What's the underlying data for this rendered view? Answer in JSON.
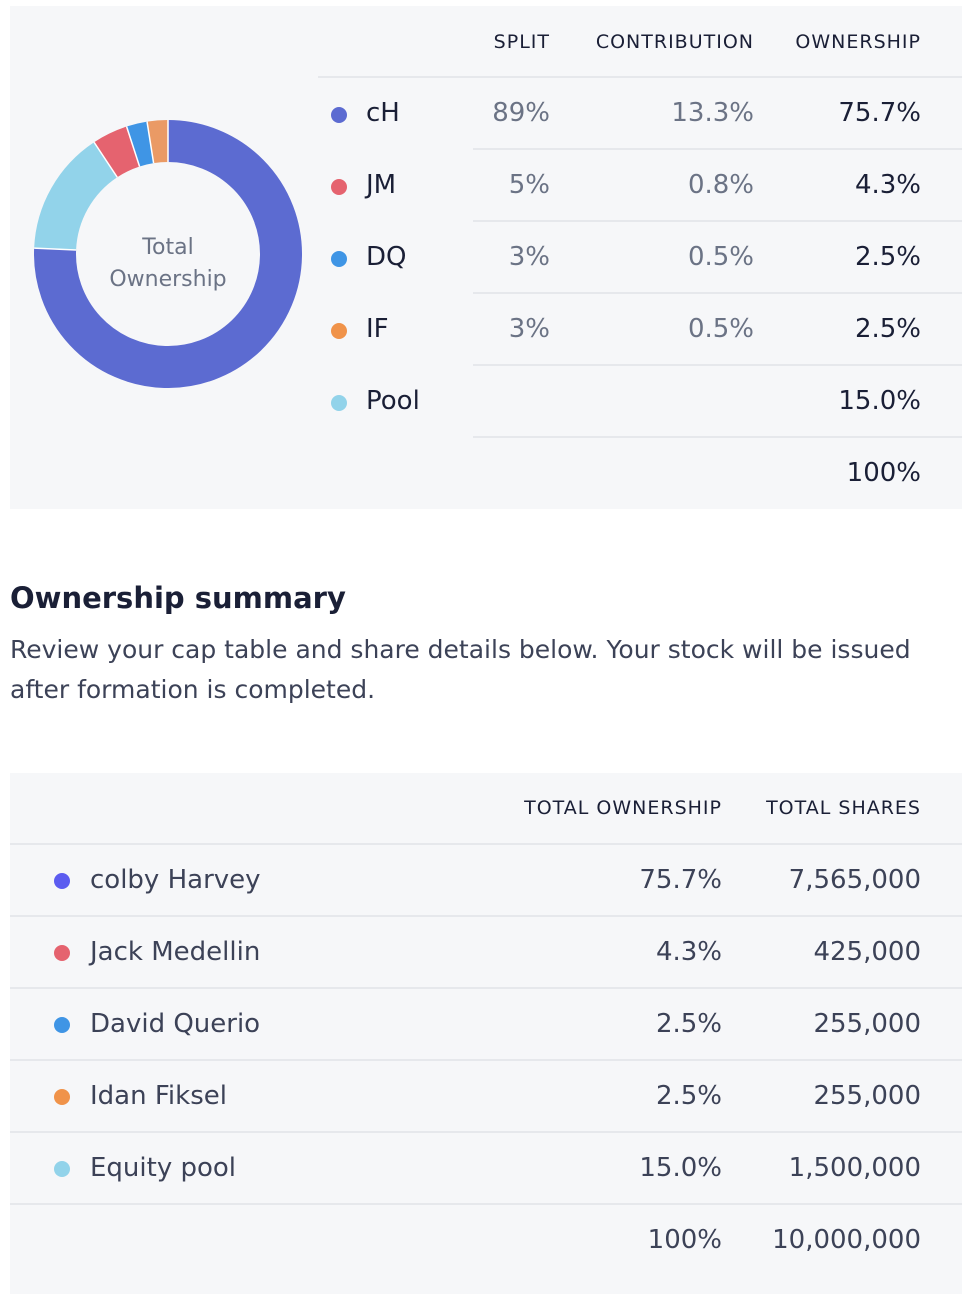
{
  "split_table": {
    "headers": {
      "split": "SPLIT",
      "contribution": "CONTRIBUTION",
      "ownership": "OWNERSHIP"
    },
    "rows": [
      {
        "name": "cH",
        "split": "89%",
        "contribution": "13.3%",
        "ownership": "75.7%",
        "color": "#5c6bd1"
      },
      {
        "name": "JM",
        "split": "5%",
        "contribution": "0.8%",
        "ownership": "4.3%",
        "color": "#e5636f"
      },
      {
        "name": "DQ",
        "split": "3%",
        "contribution": "0.5%",
        "ownership": "2.5%",
        "color": "#3f95e5"
      },
      {
        "name": "IF",
        "split": "3%",
        "contribution": "0.5%",
        "ownership": "2.5%",
        "color": "#f0934a"
      },
      {
        "name": "Pool",
        "split": "",
        "contribution": "",
        "ownership": "15.0%",
        "color": "#92d3ea"
      }
    ],
    "total": "100%"
  },
  "donut": {
    "label": "Total Ownership",
    "segments": [
      {
        "name": "cH",
        "value": 75.7,
        "color": "#5c6bd1"
      },
      {
        "name": "Pool",
        "value": 15.0,
        "color": "#92d3ea"
      },
      {
        "name": "JM",
        "value": 4.3,
        "color": "#e5636f"
      },
      {
        "name": "DQ",
        "value": 2.5,
        "color": "#3f95e5"
      },
      {
        "name": "IF",
        "value": 2.5,
        "color": "#ea9a65"
      }
    ]
  },
  "summary": {
    "title": "Ownership summary",
    "description": "Review your cap table and share details below. Your stock will be issued after formation is completed.",
    "headers": {
      "ownership": "TOTAL OWNERSHIP",
      "shares": "TOTAL SHARES"
    },
    "rows": [
      {
        "name": "colby Harvey",
        "ownership": "75.7%",
        "shares": "7,565,000",
        "color": "#5c5cf0"
      },
      {
        "name": "Jack Medellin",
        "ownership": "4.3%",
        "shares": "425,000",
        "color": "#e5636f"
      },
      {
        "name": "David Querio",
        "ownership": "2.5%",
        "shares": "255,000",
        "color": "#3f95e5"
      },
      {
        "name": "Idan Fiksel",
        "ownership": "2.5%",
        "shares": "255,000",
        "color": "#f0934a"
      },
      {
        "name": "Equity pool",
        "ownership": "15.0%",
        "shares": "1,500,000",
        "color": "#92d3ea"
      }
    ],
    "total_ownership": "100%",
    "total_shares": "10,000,000"
  }
}
